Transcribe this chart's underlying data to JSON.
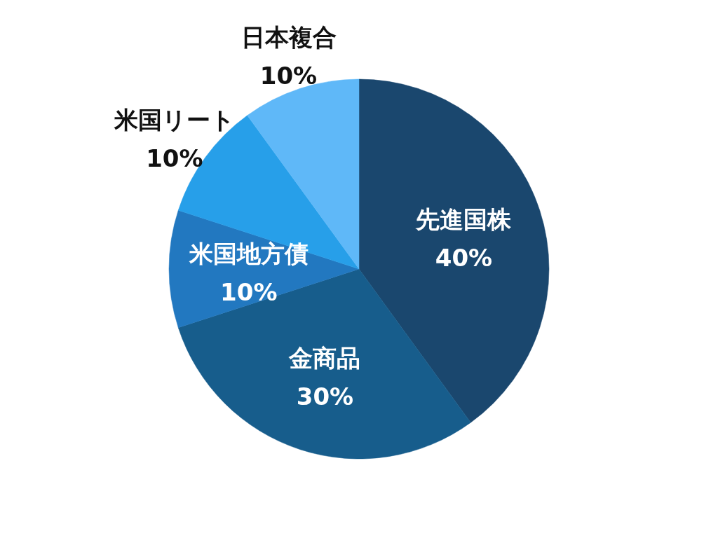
{
  "chart_data": {
    "type": "pie",
    "categories": [
      "先進国株",
      "金商品",
      "米国地方債",
      "米国リート",
      "日本複合"
    ],
    "values": [
      40,
      30,
      10,
      10,
      10
    ],
    "colors": [
      "#1a476e",
      "#175d8c",
      "#2278c0",
      "#279fe9",
      "#5fb8f8"
    ],
    "value_labels": [
      "40%",
      "30%",
      "10%",
      "10%",
      "10%"
    ]
  }
}
